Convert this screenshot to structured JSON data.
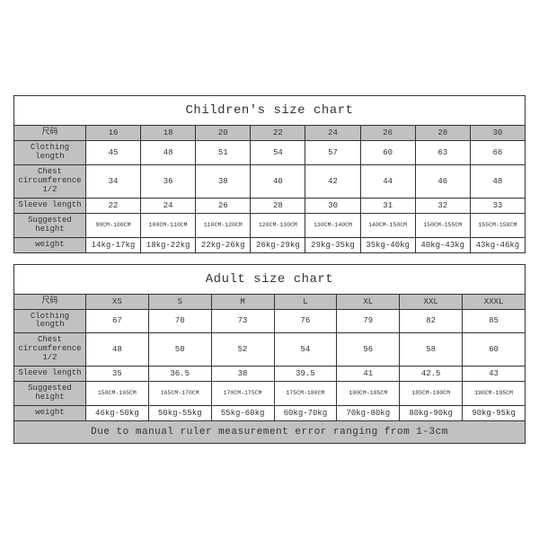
{
  "children": {
    "title": "Children's size chart",
    "row_label_header": "尺码",
    "sizes": [
      "16",
      "18",
      "20",
      "22",
      "24",
      "26",
      "28",
      "30"
    ],
    "rows": [
      {
        "label": "Clothing length",
        "v": [
          "45",
          "48",
          "51",
          "54",
          "57",
          "60",
          "63",
          "66"
        ]
      },
      {
        "label": "Chest circumference 1/2",
        "v": [
          "34",
          "36",
          "38",
          "40",
          "42",
          "44",
          "46",
          "48"
        ]
      },
      {
        "label": "Sleeve length",
        "v": [
          "22",
          "24",
          "26",
          "28",
          "30",
          "31",
          "32",
          "33"
        ]
      },
      {
        "label": "Suggested height",
        "v": [
          "90CM-100CM",
          "100CM-110CM",
          "110CM-120CM",
          "120CM-130CM",
          "130CM-140CM",
          "140CM-150CM",
          "150CM-155CM",
          "155CM-158CM"
        ],
        "tiny": true
      },
      {
        "label": "weight",
        "v": [
          "14kg-17kg",
          "18kg-22kg",
          "22kg-26kg",
          "26kg-29kg",
          "29kg-35kg",
          "35kg-40kg",
          "40kg-43kg",
          "43kg-46kg"
        ]
      }
    ]
  },
  "adult": {
    "title": "Adult size chart",
    "row_label_header": "尺码",
    "sizes": [
      "XS",
      "S",
      "M",
      "L",
      "XL",
      "XXL",
      "XXXL"
    ],
    "rows": [
      {
        "label": "Clothing length",
        "v": [
          "67",
          "70",
          "73",
          "76",
          "79",
          "82",
          "85"
        ]
      },
      {
        "label": "Chest circumference 1/2",
        "v": [
          "48",
          "50",
          "52",
          "54",
          "56",
          "58",
          "60"
        ]
      },
      {
        "label": "Sleeve length",
        "v": [
          "35",
          "36.5",
          "38",
          "39.5",
          "41",
          "42.5",
          "43"
        ]
      },
      {
        "label": "Suggested height",
        "v": [
          "158CM-165CM",
          "165CM-170CM",
          "170CM-175CM",
          "175CM-180CM",
          "180CM-185CM",
          "185CM-190CM",
          "190CM-195CM"
        ],
        "tiny": true
      },
      {
        "label": "weight",
        "v": [
          "46kg-50kg",
          "50kg-55kg",
          "55kg-60kg",
          "60kg-70kg",
          "70kg-80kg",
          "80kg-90kg",
          "90kg-95kg"
        ]
      }
    ],
    "note": "Due to manual ruler measurement error ranging from 1-3cm"
  }
}
